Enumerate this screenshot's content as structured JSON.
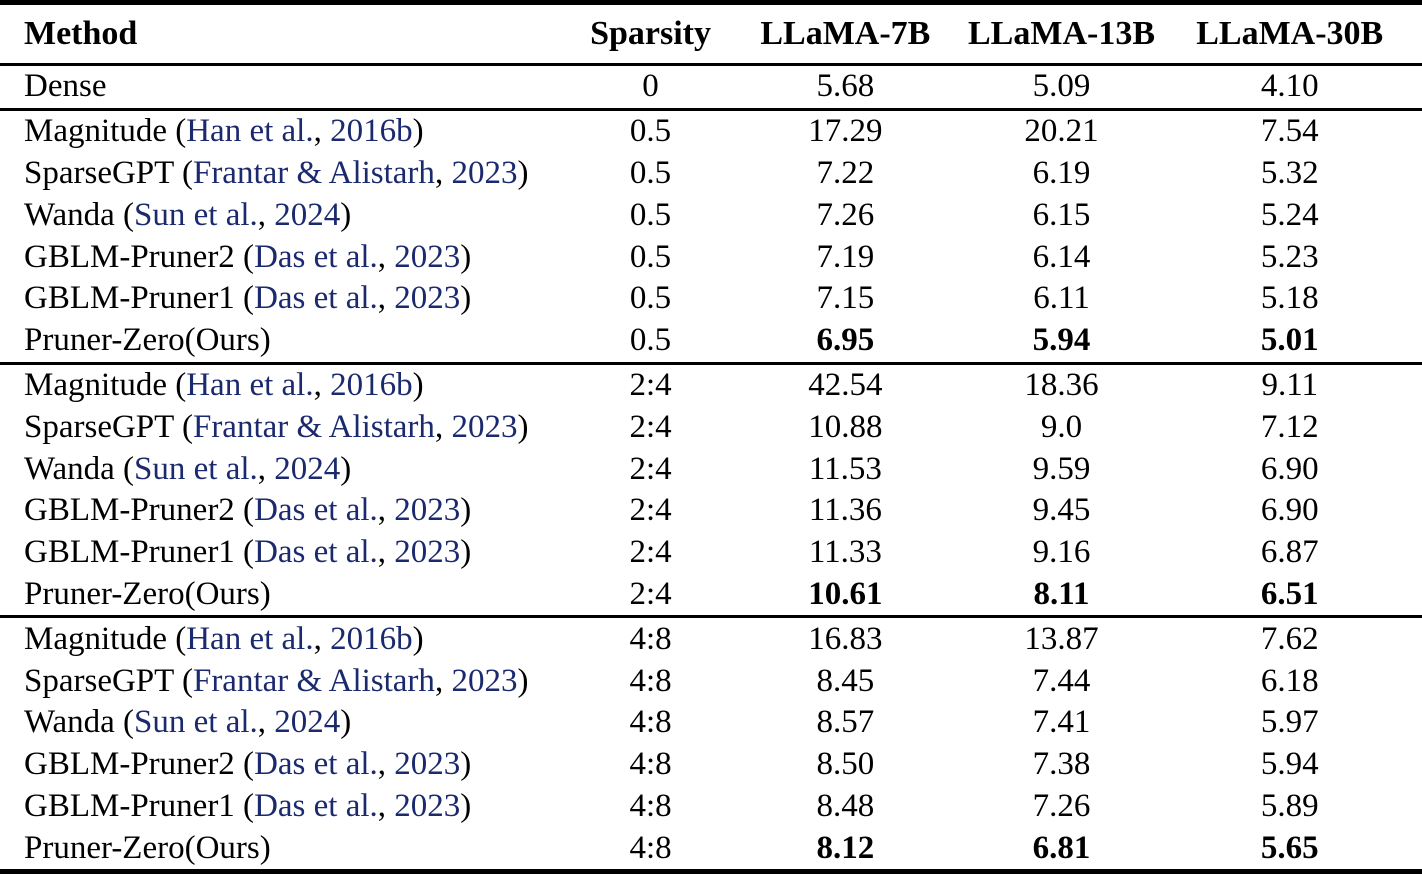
{
  "page": {
    "background_color": "#ffffff",
    "text_color": "#000000",
    "citation_link_color": "#1b2a6e"
  },
  "table": {
    "columns": [
      "Method",
      "Sparsity",
      "LLaMA-7B",
      "LLaMA-13B",
      "LLaMA-30B"
    ],
    "sections": [
      {
        "rows": [
          {
            "method": {
              "pre": "Dense"
            },
            "sparsity": "0",
            "values": [
              "5.68",
              "5.09",
              "4.10"
            ],
            "bold": false
          }
        ]
      },
      {
        "rows": [
          {
            "method": {
              "pre": "Magnitude (",
              "cite_authors": "Han et al.",
              "cite_sep": ", ",
              "cite_year": "2016b",
              "post": ")"
            },
            "sparsity": "0.5",
            "values": [
              "17.29",
              "20.21",
              "7.54"
            ],
            "bold": false
          },
          {
            "method": {
              "pre": "SparseGPT (",
              "cite_authors": "Frantar & Alistarh",
              "cite_sep": ", ",
              "cite_year": "2023",
              "post": ")"
            },
            "sparsity": "0.5",
            "values": [
              "7.22",
              "6.19",
              "5.32"
            ],
            "bold": false
          },
          {
            "method": {
              "pre": "Wanda (",
              "cite_authors": "Sun et al.",
              "cite_sep": ", ",
              "cite_year": "2024",
              "post": ")"
            },
            "sparsity": "0.5",
            "values": [
              "7.26",
              "6.15",
              "5.24"
            ],
            "bold": false
          },
          {
            "method": {
              "pre": "GBLM-Pruner2 (",
              "cite_authors": "Das et al.",
              "cite_sep": ", ",
              "cite_year": "2023",
              "post": ")"
            },
            "sparsity": "0.5",
            "values": [
              "7.19",
              "6.14",
              "5.23"
            ],
            "bold": false
          },
          {
            "method": {
              "pre": "GBLM-Pruner1 (",
              "cite_authors": "Das et al.",
              "cite_sep": ", ",
              "cite_year": "2023",
              "post": ")"
            },
            "sparsity": "0.5",
            "values": [
              "7.15",
              "6.11",
              "5.18"
            ],
            "bold": false
          },
          {
            "method": {
              "pre": "Pruner-Zero(Ours)"
            },
            "sparsity": "0.5",
            "values": [
              "6.95",
              "5.94",
              "5.01"
            ],
            "bold": true
          }
        ]
      },
      {
        "rows": [
          {
            "method": {
              "pre": "Magnitude (",
              "cite_authors": "Han et al.",
              "cite_sep": ", ",
              "cite_year": "2016b",
              "post": ")"
            },
            "sparsity": "2:4",
            "values": [
              "42.54",
              "18.36",
              "9.11"
            ],
            "bold": false
          },
          {
            "method": {
              "pre": "SparseGPT (",
              "cite_authors": "Frantar & Alistarh",
              "cite_sep": ", ",
              "cite_year": "2023",
              "post": ")"
            },
            "sparsity": "2:4",
            "values": [
              "10.88",
              "9.0",
              "7.12"
            ],
            "bold": false
          },
          {
            "method": {
              "pre": "Wanda (",
              "cite_authors": "Sun et al.",
              "cite_sep": ", ",
              "cite_year": "2024",
              "post": ")"
            },
            "sparsity": "2:4",
            "values": [
              "11.53",
              "9.59",
              "6.90"
            ],
            "bold": false
          },
          {
            "method": {
              "pre": "GBLM-Pruner2 (",
              "cite_authors": "Das et al.",
              "cite_sep": ", ",
              "cite_year": "2023",
              "post": ")"
            },
            "sparsity": "2:4",
            "values": [
              "11.36",
              "9.45",
              "6.90"
            ],
            "bold": false
          },
          {
            "method": {
              "pre": "GBLM-Pruner1 (",
              "cite_authors": "Das et al.",
              "cite_sep": ", ",
              "cite_year": "2023",
              "post": ")"
            },
            "sparsity": "2:4",
            "values": [
              "11.33",
              "9.16",
              "6.87"
            ],
            "bold": false
          },
          {
            "method": {
              "pre": "Pruner-Zero(Ours)"
            },
            "sparsity": "2:4",
            "values": [
              "10.61",
              "8.11",
              "6.51"
            ],
            "bold": true
          }
        ]
      },
      {
        "rows": [
          {
            "method": {
              "pre": "Magnitude (",
              "cite_authors": "Han et al.",
              "cite_sep": ", ",
              "cite_year": "2016b",
              "post": ")"
            },
            "sparsity": "4:8",
            "values": [
              "16.83",
              "13.87",
              "7.62"
            ],
            "bold": false
          },
          {
            "method": {
              "pre": "SparseGPT (",
              "cite_authors": "Frantar & Alistarh",
              "cite_sep": ", ",
              "cite_year": "2023",
              "post": ")"
            },
            "sparsity": "4:8",
            "values": [
              "8.45",
              "7.44",
              "6.18"
            ],
            "bold": false
          },
          {
            "method": {
              "pre": "Wanda (",
              "cite_authors": "Sun et al.",
              "cite_sep": ", ",
              "cite_year": "2024",
              "post": ")"
            },
            "sparsity": "4:8",
            "values": [
              "8.57",
              "7.41",
              "5.97"
            ],
            "bold": false
          },
          {
            "method": {
              "pre": "GBLM-Pruner2 (",
              "cite_authors": "Das et al.",
              "cite_sep": ", ",
              "cite_year": "2023",
              "post": ")"
            },
            "sparsity": "4:8",
            "values": [
              "8.50",
              "7.38",
              "5.94"
            ],
            "bold": false
          },
          {
            "method": {
              "pre": "GBLM-Pruner1 (",
              "cite_authors": "Das et al.",
              "cite_sep": ", ",
              "cite_year": "2023",
              "post": ")"
            },
            "sparsity": "4:8",
            "values": [
              "8.48",
              "7.26",
              "5.89"
            ],
            "bold": false
          },
          {
            "method": {
              "pre": "Pruner-Zero(Ours)"
            },
            "sparsity": "4:8",
            "values": [
              "8.12",
              "6.81",
              "5.65"
            ],
            "bold": true
          }
        ]
      }
    ]
  }
}
